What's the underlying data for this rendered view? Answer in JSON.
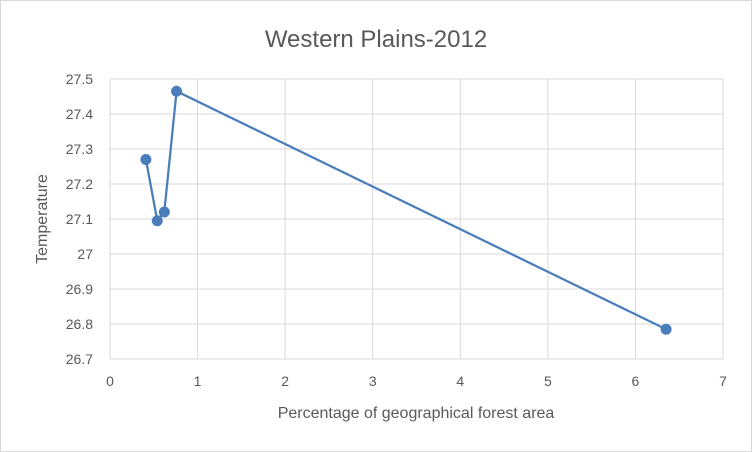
{
  "chart_data": {
    "type": "scatter",
    "title": "Western Plains-2012",
    "xlabel": "Percentage of geographical forest area",
    "ylabel": "Temperature",
    "xlim": [
      0,
      7
    ],
    "ylim": [
      26.7,
      27.5
    ],
    "x_ticks": [
      "0",
      "1",
      "2",
      "3",
      "4",
      "5",
      "6",
      "7"
    ],
    "y_ticks": [
      "26.7",
      "26.8",
      "26.9",
      "27",
      "27.1",
      "27.2",
      "27.3",
      "27.4",
      "27.5"
    ],
    "grid": true,
    "lines_connected": true,
    "color": "#4a7ebb",
    "points": [
      {
        "x": 0.41,
        "y": 27.27
      },
      {
        "x": 0.54,
        "y": 27.095
      },
      {
        "x": 0.62,
        "y": 27.12
      },
      {
        "x": 0.76,
        "y": 27.465
      },
      {
        "x": 6.35,
        "y": 26.785
      }
    ]
  }
}
